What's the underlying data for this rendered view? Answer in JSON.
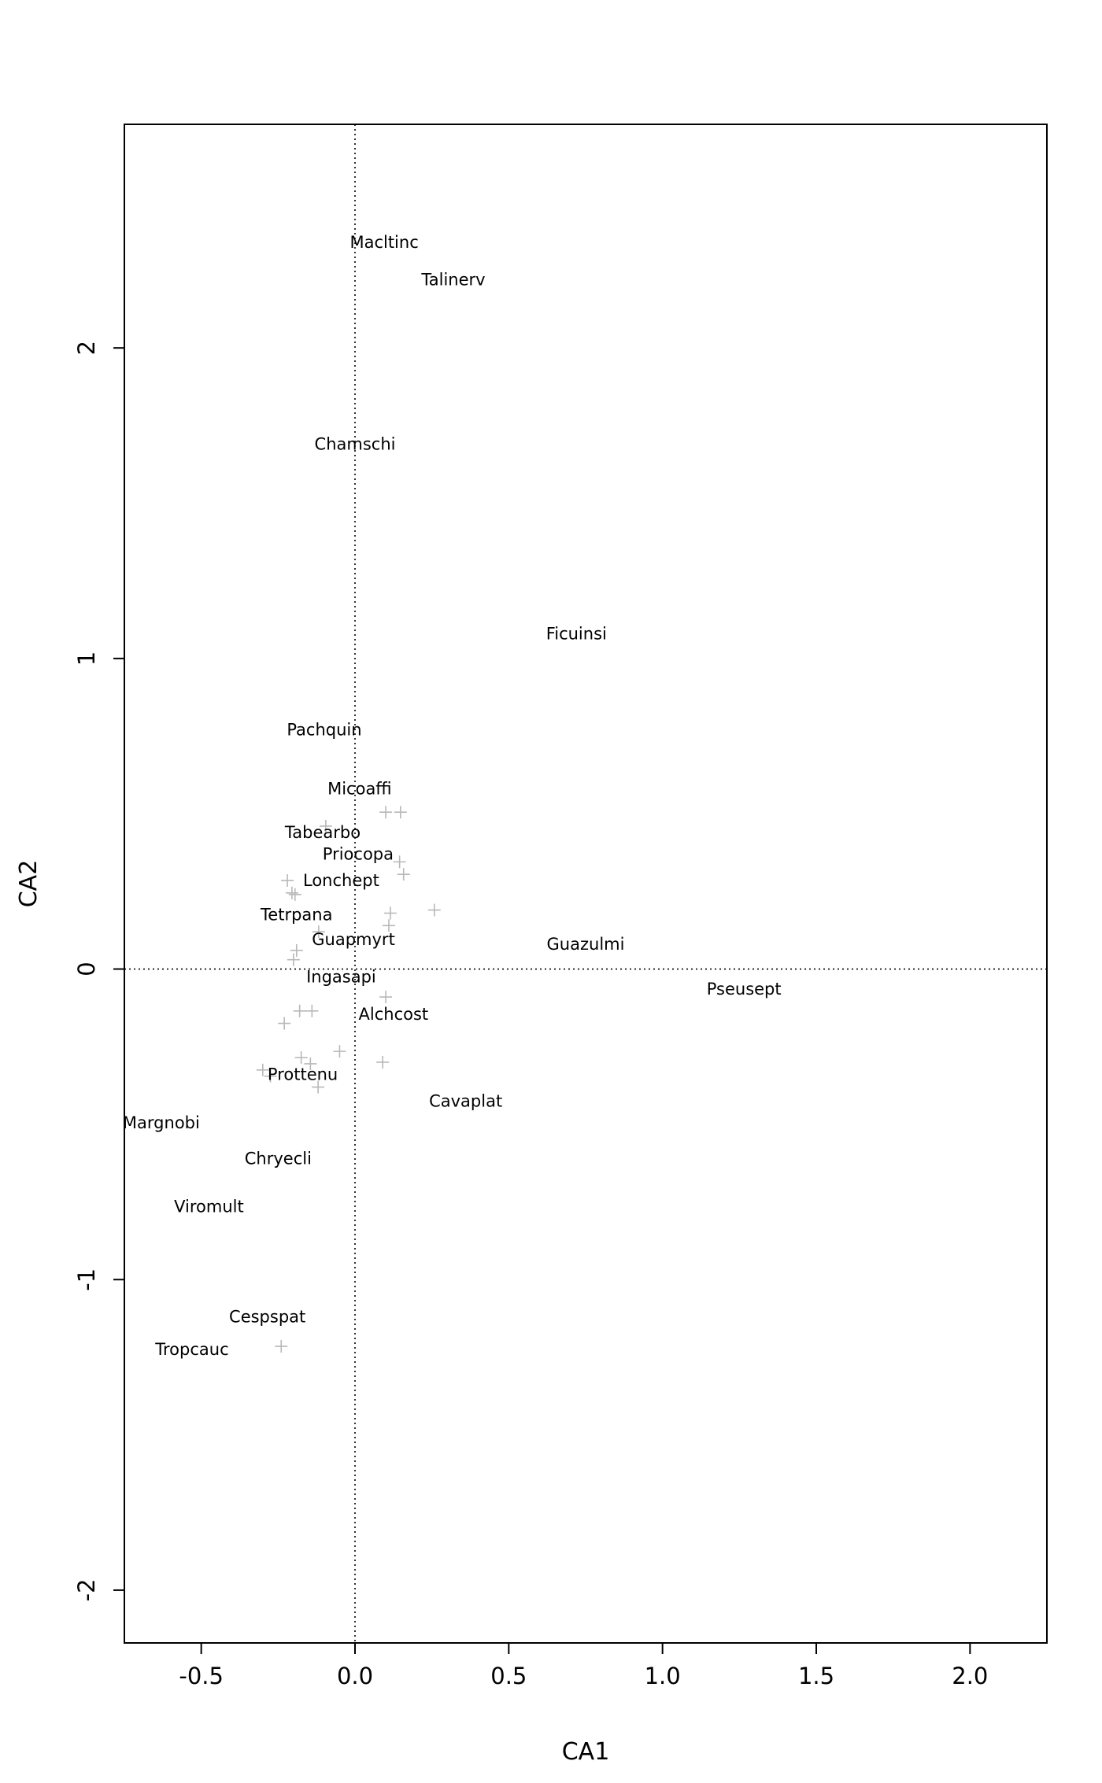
{
  "chart_data": {
    "type": "scatter",
    "xlabel": "CA1",
    "ylabel": "CA2",
    "xlim": [
      -0.75,
      2.25
    ],
    "ylim": [
      -2.17,
      2.72
    ],
    "x_ticks": [
      -0.5,
      0.0,
      0.5,
      1.0,
      1.5,
      2.0
    ],
    "x_tick_labels": [
      "-0.5",
      "0.0",
      "0.5",
      "1.0",
      "1.5",
      "2.0"
    ],
    "y_ticks": [
      -2,
      -1,
      0,
      1,
      2
    ],
    "y_tick_labels": [
      "-2",
      "-1",
      "0",
      "1",
      "2"
    ],
    "reference_lines": [
      {
        "orientation": "vertical",
        "value": 0,
        "style": "dotted"
      },
      {
        "orientation": "horizontal",
        "value": 0,
        "style": "dotted"
      }
    ],
    "colors": {
      "points": "#b8b8b8",
      "labels": "#000000",
      "axes": "#000000"
    },
    "species": [
      {
        "label": "Macltinc",
        "x": 0.095,
        "y": 2.34
      },
      {
        "label": "Talinerv",
        "x": 0.32,
        "y": 2.22
      },
      {
        "label": "Chamschi",
        "x": 0.0,
        "y": 1.69
      },
      {
        "label": "Ficuinsi",
        "x": 0.72,
        "y": 1.08
      },
      {
        "label": "Pachquin",
        "x": -0.1,
        "y": 0.77
      },
      {
        "label": "Micoaffi",
        "x": 0.015,
        "y": 0.58
      },
      {
        "label": "Tabearbo",
        "x": -0.105,
        "y": 0.44
      },
      {
        "label": "Priocopa",
        "x": 0.01,
        "y": 0.37
      },
      {
        "label": "Lonchept",
        "x": -0.045,
        "y": 0.285
      },
      {
        "label": "Tetrpana",
        "x": -0.19,
        "y": 0.175
      },
      {
        "label": "Guapmyrt",
        "x": -0.005,
        "y": 0.095
      },
      {
        "label": "Guazulmi",
        "x": 0.75,
        "y": 0.08
      },
      {
        "label": "Ingasapi",
        "x": -0.045,
        "y": -0.025
      },
      {
        "label": "Pseusept",
        "x": 1.265,
        "y": -0.065
      },
      {
        "label": "Alchcost",
        "x": 0.125,
        "y": -0.145
      },
      {
        "label": "Prottenu",
        "x": -0.17,
        "y": -0.34
      },
      {
        "label": "Cavaplat",
        "x": 0.36,
        "y": -0.425
      },
      {
        "label": "Margnobi",
        "x": -0.63,
        "y": -0.495
      },
      {
        "label": "Chryecli",
        "x": -0.25,
        "y": -0.61
      },
      {
        "label": "Viromult",
        "x": -0.475,
        "y": -0.765
      },
      {
        "label": "Cespspat",
        "x": -0.285,
        "y": -1.12
      },
      {
        "label": "Tropcauc",
        "x": -0.53,
        "y": -1.225
      }
    ],
    "sites": [
      {
        "x": 0.1,
        "y": 0.505
      },
      {
        "x": 0.148,
        "y": 0.505
      },
      {
        "x": -0.095,
        "y": 0.46
      },
      {
        "x": 0.145,
        "y": 0.345
      },
      {
        "x": 0.158,
        "y": 0.305
      },
      {
        "x": -0.22,
        "y": 0.285
      },
      {
        "x": -0.205,
        "y": 0.245
      },
      {
        "x": -0.195,
        "y": 0.24
      },
      {
        "x": 0.258,
        "y": 0.19
      },
      {
        "x": 0.115,
        "y": 0.18
      },
      {
        "x": 0.11,
        "y": 0.14
      },
      {
        "x": -0.118,
        "y": 0.12
      },
      {
        "x": -0.19,
        "y": 0.06
      },
      {
        "x": -0.2,
        "y": 0.03
      },
      {
        "x": 0.1,
        "y": -0.09
      },
      {
        "x": -0.18,
        "y": -0.135
      },
      {
        "x": -0.14,
        "y": -0.135
      },
      {
        "x": -0.23,
        "y": -0.175
      },
      {
        "x": -0.05,
        "y": -0.265
      },
      {
        "x": -0.175,
        "y": -0.285
      },
      {
        "x": 0.09,
        "y": -0.3
      },
      {
        "x": -0.145,
        "y": -0.305
      },
      {
        "x": -0.3,
        "y": -0.325
      },
      {
        "x": -0.275,
        "y": -0.345
      },
      {
        "x": -0.12,
        "y": -0.38
      },
      {
        "x": -0.24,
        "y": -1.215
      }
    ]
  }
}
